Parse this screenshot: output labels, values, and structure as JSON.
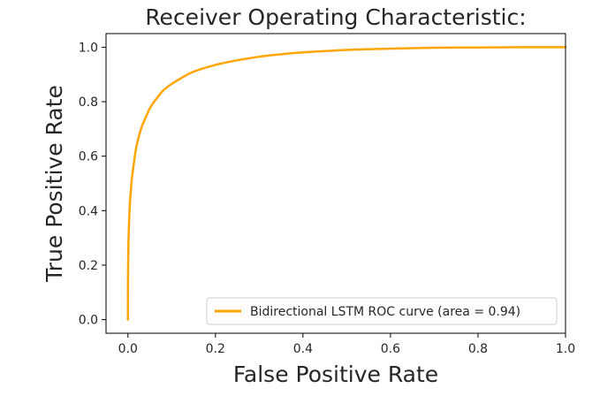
{
  "chart_data": {
    "type": "line",
    "title": "Receiver Operating Characteristic:",
    "xlabel": "False Positive Rate",
    "ylabel": "True Positive Rate",
    "xlim": [
      -0.05,
      1.0
    ],
    "ylim": [
      -0.05,
      1.05
    ],
    "xticks": [
      "0.0",
      "0.2",
      "0.4",
      "0.6",
      "0.8",
      "1.0"
    ],
    "yticks": [
      "0.0",
      "0.2",
      "0.4",
      "0.6",
      "0.8",
      "1.0"
    ],
    "grid": false,
    "legend_position": "lower-right",
    "series": [
      {
        "name": "Bidirectional LSTM ROC curve (area = 0.94)",
        "color": "#ffa500",
        "x": [
          0.0,
          0.0001,
          0.0005,
          0.001,
          0.002,
          0.004,
          0.006,
          0.008,
          0.01,
          0.015,
          0.02,
          0.03,
          0.04,
          0.05,
          0.06,
          0.08,
          0.1,
          0.12,
          0.15,
          0.2,
          0.25,
          0.3,
          0.35,
          0.4,
          0.5,
          0.6,
          0.7,
          0.8,
          0.9,
          1.0
        ],
        "y": [
          0.0,
          0.1,
          0.2,
          0.26,
          0.33,
          0.41,
          0.46,
          0.5,
          0.53,
          0.59,
          0.64,
          0.7,
          0.74,
          0.775,
          0.8,
          0.84,
          0.865,
          0.885,
          0.91,
          0.935,
          0.952,
          0.965,
          0.974,
          0.981,
          0.99,
          0.995,
          0.998,
          0.999,
          1.0,
          1.0
        ]
      }
    ]
  }
}
